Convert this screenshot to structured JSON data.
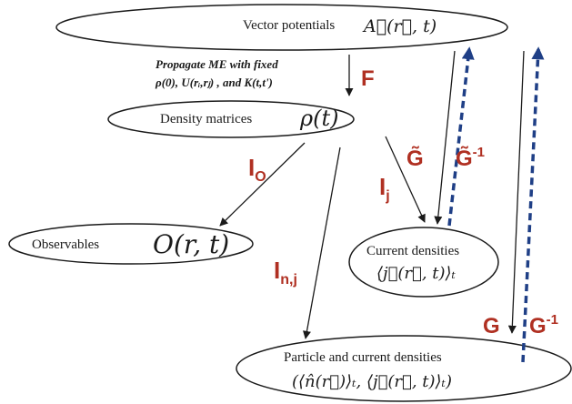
{
  "colors": {
    "label": "#b03022",
    "dashed_arrow": "#1f3f86",
    "stroke": "#1a1a1a"
  },
  "nodes": {
    "vector_potentials": {
      "label": "Vector potentials",
      "math": "A⃗(r⃗, t)"
    },
    "density_matrices": {
      "label": "Density matrices",
      "math": "ρ(t)"
    },
    "observables": {
      "label": "Observables",
      "math": "O(r, t)"
    },
    "current_densities": {
      "label": "Current densities",
      "math": "⟨j⃗(r⃗, t)⟩ₜ"
    },
    "particle_current": {
      "label": "Particle and current densities",
      "math": "(⟨n̂(r⃗)⟩ₜ, ⟨j⃗(r⃗, t)⟩ₜ)"
    }
  },
  "propagate_note": {
    "line1": "Propagate ME with fixed",
    "line2": "ρ(0), U(rᵢ,rⱼ) , and K(t,t')"
  },
  "labels": {
    "F": "F",
    "G_tilde": "G̃",
    "G_tilde_inv": "G̃",
    "G_tilde_inv_sup": "-1",
    "I_O": "I",
    "I_O_sub": "O",
    "I_j": "I",
    "I_j_sub": "j",
    "I_nj": "I",
    "I_nj_sub": "n,j",
    "G": "G",
    "G_inv": "G",
    "G_inv_sup": "-1"
  }
}
